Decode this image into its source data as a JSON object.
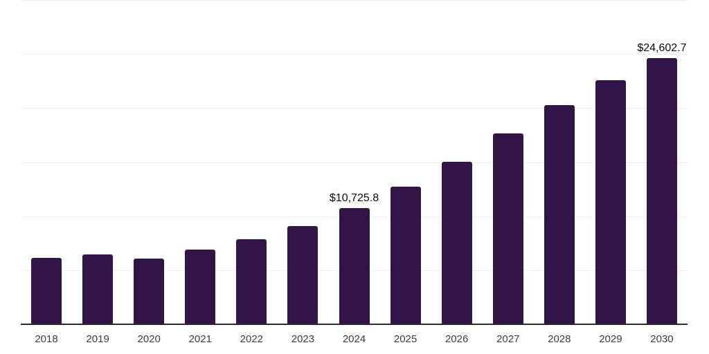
{
  "chart_data": {
    "type": "bar",
    "title": "",
    "xlabel": "",
    "ylabel": "",
    "categories": [
      "2018",
      "2019",
      "2020",
      "2021",
      "2022",
      "2023",
      "2024",
      "2025",
      "2026",
      "2027",
      "2028",
      "2029",
      "2030"
    ],
    "values": [
      6150,
      6470,
      6080,
      6890,
      7860,
      9080,
      10725.8,
      12720,
      15030,
      17650,
      20280,
      22600,
      24602.7
    ],
    "data_labels": {
      "2024": "$10,725.8",
      "2030": "$24,602.7"
    },
    "ylim": [
      0,
      30000
    ],
    "gridlines": [
      5000,
      10000,
      15000,
      20000,
      25000,
      30000
    ],
    "grid": "horizontal-only",
    "legend_position": "none",
    "y_axis_tick_labels_visible": false,
    "colors": {
      "bar": "#321547",
      "gridline": "#f0f0f0",
      "axis_line": "#2b2b2b",
      "x_tick_label": "#3c3c3c",
      "data_label": "#0a0a0a",
      "background": "#ffffff"
    }
  }
}
